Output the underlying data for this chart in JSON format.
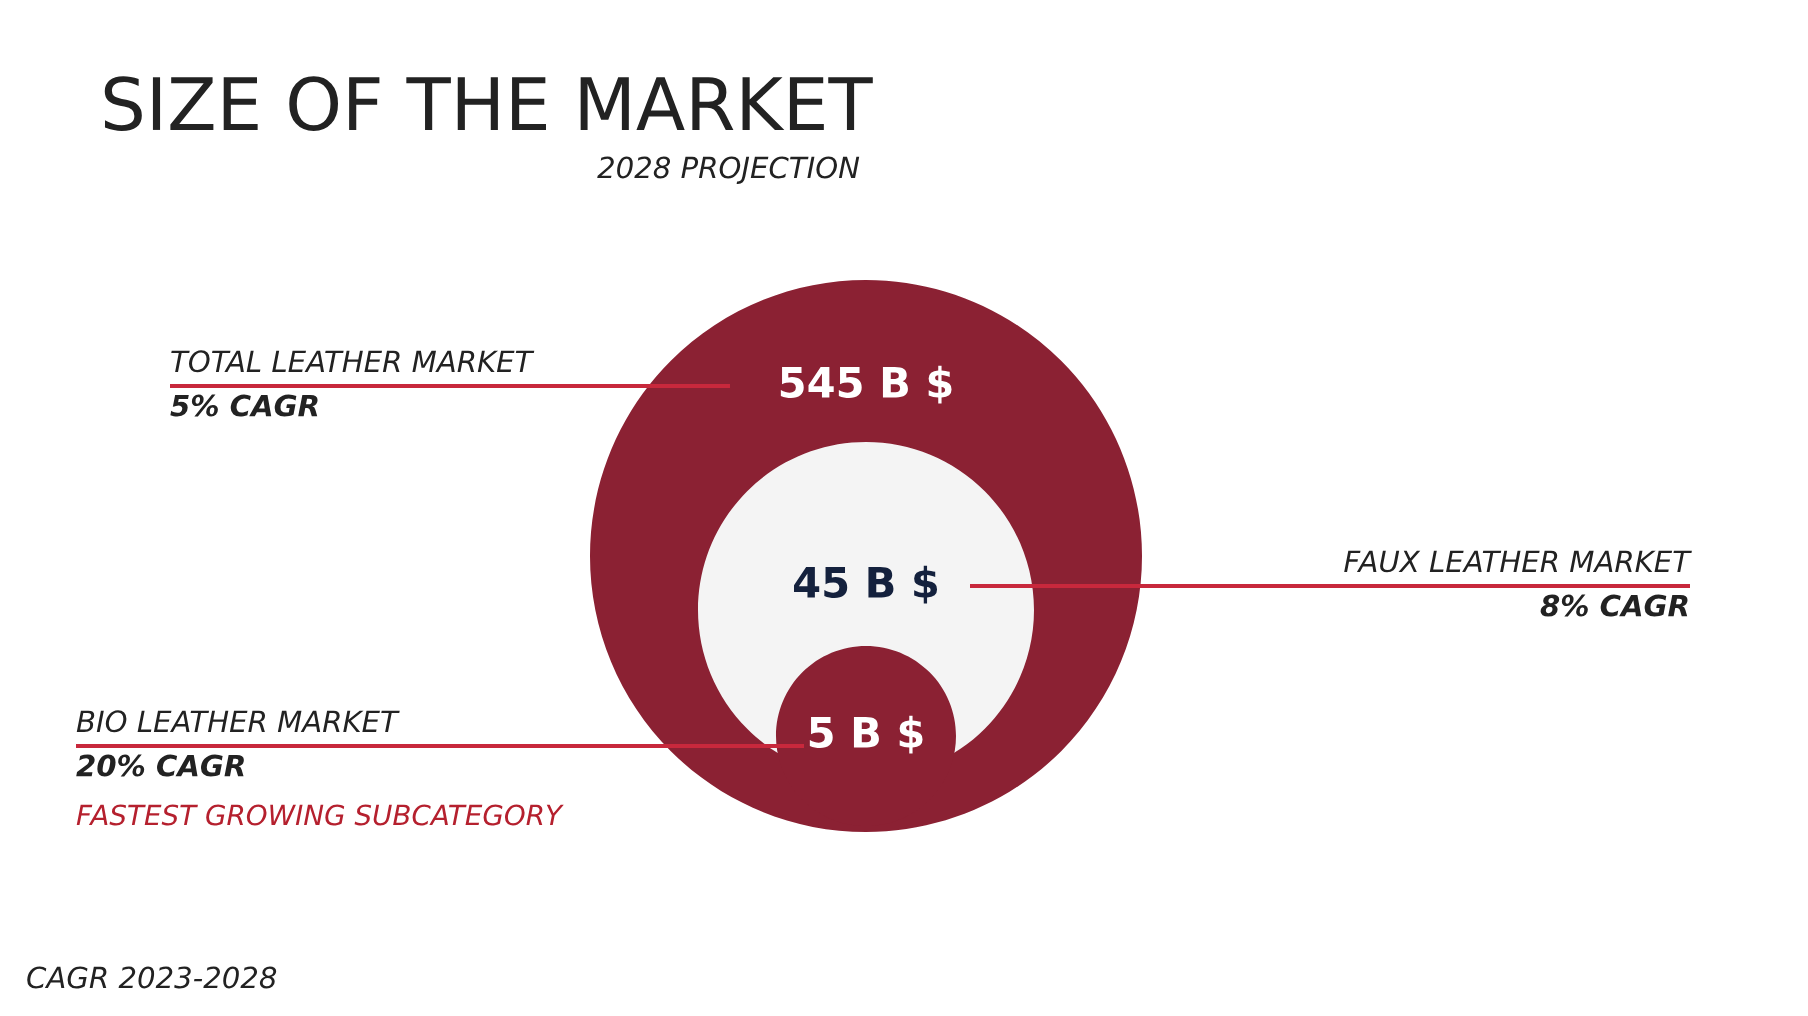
{
  "chart_data": {
    "type": "other",
    "title": "SIZE OF THE MARKET",
    "subtitle": "2028 PROJECTION",
    "categories": [
      "TOTAL LEATHER MARKET",
      "FAUX LEATHER MARKET",
      "BIO LEATHER MARKET"
    ],
    "values": [
      545,
      45,
      5
    ],
    "value_labels": [
      "545 B $",
      "45 B $",
      "5 B $"
    ],
    "colors": [
      "#8b2133",
      "#f4f4f4",
      "#8b2133"
    ],
    "annotations": [
      "5% CAGR",
      "8% CAGR",
      "20% CAGR",
      "FASTEST GROWING SUBCATEGORY",
      "CAGR 2023-2028"
    ]
  }
}
